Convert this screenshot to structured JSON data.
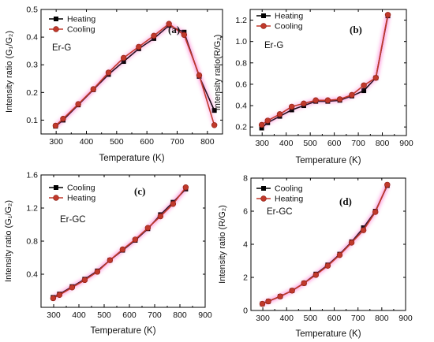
{
  "series_colors": {
    "square_series": "#000000",
    "circle_series": "#c0392b",
    "circle_edge": "#8b1a10",
    "glow": "#ff66cc"
  },
  "chart_data": [
    {
      "type": "line",
      "panel_label": "(a)",
      "annotation": "Er-G",
      "xlabel": "Temperature (K)",
      "ylabel": "Intensity ratio (G₁/G₂)",
      "xlim": [
        250,
        850
      ],
      "ylim": [
        0.05,
        0.5
      ],
      "x_ticks": [
        300,
        400,
        500,
        600,
        700,
        800
      ],
      "x_tick_labels": [
        "300",
        "400",
        "500",
        "600",
        "700",
        "800"
      ],
      "y_ticks": [
        0.1,
        0.2,
        0.3,
        0.4,
        0.5
      ],
      "y_tick_labels": [
        "0.1",
        "0.2",
        "0.3",
        "0.4",
        "0.5"
      ],
      "legend_position": "top-left",
      "series": [
        {
          "name": "Heating",
          "marker": "square",
          "x": [
            298,
            323,
            373,
            423,
            473,
            523,
            573,
            623,
            673,
            723,
            773,
            823
          ],
          "y": [
            0.078,
            0.1,
            0.155,
            0.21,
            0.265,
            0.312,
            0.358,
            0.395,
            0.442,
            0.418,
            0.258,
            0.135
          ]
        },
        {
          "name": "Cooling",
          "marker": "circle",
          "x": [
            298,
            323,
            373,
            423,
            473,
            523,
            573,
            623,
            673,
            723,
            773,
            823
          ],
          "y": [
            0.08,
            0.105,
            0.158,
            0.212,
            0.272,
            0.325,
            0.365,
            0.405,
            0.448,
            0.408,
            0.262,
            0.082
          ]
        }
      ]
    },
    {
      "type": "line",
      "panel_label": "(b)",
      "annotation": "Er-G",
      "xlabel": "Temperature (K)",
      "ylabel": "Intensity ratio(R/G₂)",
      "xlim": [
        250,
        900
      ],
      "ylim": [
        0.12,
        1.3
      ],
      "x_ticks": [
        300,
        400,
        500,
        600,
        700,
        800,
        900
      ],
      "x_tick_labels": [
        "300",
        "400",
        "500",
        "600",
        "700",
        "800",
        "900"
      ],
      "y_ticks": [
        0.2,
        0.4,
        0.6,
        0.8,
        1.0,
        1.2
      ],
      "y_tick_labels": [
        "0.2",
        "0.4",
        "0.6",
        "0.8",
        "1.0",
        "1.2"
      ],
      "legend_position": "top-left",
      "series": [
        {
          "name": "Heating",
          "marker": "square",
          "x": [
            298,
            323,
            373,
            423,
            473,
            523,
            573,
            623,
            673,
            723,
            773,
            823
          ],
          "y": [
            0.19,
            0.24,
            0.3,
            0.36,
            0.4,
            0.44,
            0.44,
            0.45,
            0.49,
            0.54,
            0.66,
            1.24
          ]
        },
        {
          "name": "Cooling",
          "marker": "circle",
          "x": [
            298,
            323,
            373,
            423,
            473,
            523,
            573,
            623,
            673,
            723,
            773,
            823
          ],
          "y": [
            0.22,
            0.26,
            0.32,
            0.39,
            0.42,
            0.45,
            0.45,
            0.46,
            0.5,
            0.59,
            0.66,
            1.25
          ]
        }
      ]
    },
    {
      "type": "line",
      "panel_label": "(c)",
      "annotation": "Er-GC",
      "xlabel": "Temperature (K)",
      "ylabel": "Intensity ratio (G₁/G₂)",
      "xlim": [
        250,
        900
      ],
      "ylim": [
        0.0,
        1.6
      ],
      "x_ticks": [
        300,
        400,
        500,
        600,
        700,
        800,
        900
      ],
      "x_tick_labels": [
        "300",
        "400",
        "500",
        "600",
        "700",
        "800",
        "900"
      ],
      "y_ticks": [
        0.4,
        0.8,
        1.2,
        1.6
      ],
      "y_tick_labels": [
        "0.4",
        "0.8",
        "1.2",
        "1.6"
      ],
      "legend_position": "top-left",
      "series": [
        {
          "name": "Cooling",
          "marker": "square",
          "x": [
            298,
            323,
            373,
            423,
            473,
            523,
            573,
            623,
            673,
            723,
            773,
            823
          ],
          "y": [
            0.12,
            0.16,
            0.25,
            0.34,
            0.44,
            0.57,
            0.69,
            0.81,
            0.95,
            1.12,
            1.27,
            1.43
          ]
        },
        {
          "name": "Heating",
          "marker": "circle",
          "x": [
            298,
            323,
            373,
            423,
            473,
            523,
            573,
            623,
            673,
            723,
            773,
            823
          ],
          "y": [
            0.11,
            0.15,
            0.24,
            0.33,
            0.43,
            0.57,
            0.7,
            0.82,
            0.96,
            1.1,
            1.25,
            1.45
          ]
        }
      ]
    },
    {
      "type": "line",
      "panel_label": "(d)",
      "annotation": "Er-GC",
      "xlabel": "Temperature (K)",
      "ylabel": "Intensity ratio (R/G₂)",
      "xlim": [
        250,
        900
      ],
      "ylim": [
        0,
        8
      ],
      "x_ticks": [
        300,
        400,
        500,
        600,
        700,
        800,
        900
      ],
      "x_tick_labels": [
        "300",
        "400",
        "500",
        "600",
        "700",
        "800",
        "900"
      ],
      "y_ticks": [
        0,
        2,
        4,
        6,
        8
      ],
      "y_tick_labels": [
        "0",
        "2",
        "4",
        "6",
        "8"
      ],
      "legend_position": "top-left",
      "series": [
        {
          "name": "Cooling",
          "marker": "square",
          "x": [
            298,
            323,
            373,
            423,
            473,
            523,
            573,
            623,
            673,
            723,
            773,
            823
          ],
          "y": [
            0.4,
            0.55,
            0.85,
            1.2,
            1.65,
            2.2,
            2.75,
            3.4,
            4.15,
            5.0,
            6.0,
            7.55
          ]
        },
        {
          "name": "Heating",
          "marker": "circle",
          "x": [
            298,
            323,
            373,
            423,
            473,
            523,
            573,
            623,
            673,
            723,
            773,
            823
          ],
          "y": [
            0.4,
            0.55,
            0.85,
            1.2,
            1.65,
            2.15,
            2.7,
            3.35,
            4.1,
            4.85,
            5.95,
            7.6
          ]
        }
      ]
    }
  ]
}
